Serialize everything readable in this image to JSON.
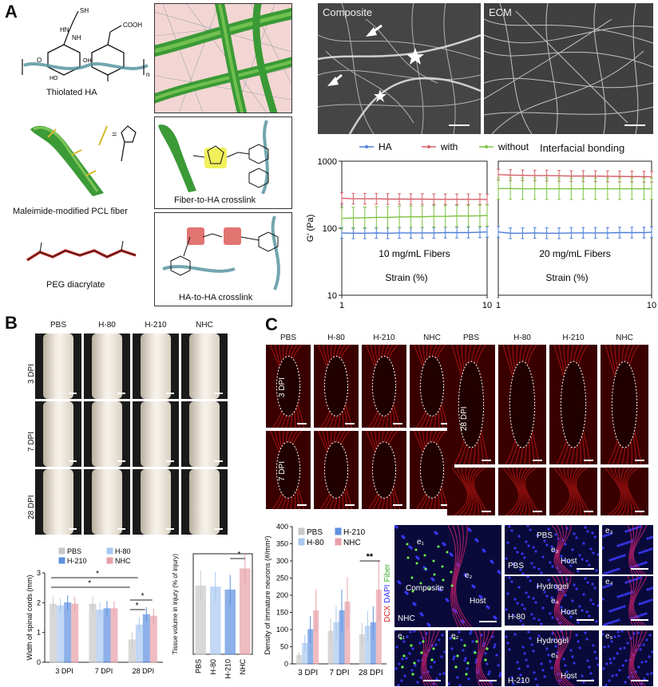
{
  "panelA": {
    "letter": "A",
    "labels": {
      "thiolated_ha": "Thiolated HA",
      "maleimide_fiber": "Maleimide-modified PCL fiber",
      "peg": "PEG diacrylate",
      "fiber_ha": "Fiber-to-HA crosslink",
      "ha_ha": "HA-to-HA crosslink",
      "sem_composite": "Composite",
      "sem_ecm": "ECM",
      "fibers_10": "10 mg/mL Fibers",
      "fibers_20": "20 mg/mL Fibers",
      "interfacial": "Interfacial bonding"
    },
    "chem": {
      "sh": "SH",
      "hn": "HN",
      "nh": "NH",
      "o": "O",
      "cooh": "COOH",
      "oh": "OH",
      "ho": "HO",
      "n": "n",
      "eq": "="
    }
  },
  "chart_data": [
    {
      "type": "line",
      "title": "",
      "xlabel": "Strain (%)",
      "ylabel": "G' (Pa)",
      "xscale": "log",
      "yscale": "log",
      "xlim": [
        1,
        10
      ],
      "ylim": [
        10,
        1000
      ],
      "xticks": [
        "1",
        "10"
      ],
      "yticks": [
        "10",
        "100",
        "1000"
      ],
      "annotation": "10 mg/mL Fibers",
      "legend": {
        "placement": "top",
        "entries": [
          "HA",
          "with",
          "without"
        ]
      },
      "series": [
        {
          "name": "HA",
          "color": "#4f7ed8",
          "x": [
            1,
            1.2,
            1.44,
            1.73,
            2.07,
            2.49,
            2.99,
            3.58,
            4.3,
            5.16,
            6.19,
            7.43,
            8.92,
            10
          ],
          "y": [
            85,
            84,
            84,
            85,
            84,
            85,
            85,
            85,
            85,
            86,
            86,
            86,
            87,
            88
          ]
        },
        {
          "name": "with",
          "color": "#d45f68",
          "x": [
            1,
            1.2,
            1.44,
            1.73,
            2.07,
            2.49,
            2.99,
            3.58,
            4.3,
            5.16,
            6.19,
            7.43,
            8.92,
            10
          ],
          "y": [
            280,
            275,
            275,
            275,
            272,
            272,
            272,
            272,
            270,
            270,
            270,
            270,
            270,
            268
          ]
        },
        {
          "name": "without",
          "color": "#7cc242",
          "x": [
            1,
            1.2,
            1.44,
            1.73,
            2.07,
            2.49,
            2.99,
            3.58,
            4.3,
            5.16,
            6.19,
            7.43,
            8.92,
            10
          ],
          "y": [
            140,
            142,
            143,
            145,
            145,
            147,
            148,
            148,
            150,
            150,
            152,
            152,
            153,
            155
          ]
        }
      ]
    },
    {
      "type": "line",
      "title": "",
      "xlabel": "Strain (%)",
      "ylabel": "",
      "xscale": "log",
      "yscale": "log",
      "xlim": [
        1,
        10
      ],
      "ylim": [
        10,
        1000
      ],
      "xticks": [
        "1",
        "10"
      ],
      "annotation": "20 mg/mL Fibers",
      "series": [
        {
          "name": "HA",
          "color": "#4f7ed8",
          "x": [
            1,
            1.2,
            1.44,
            1.73,
            2.07,
            2.49,
            2.99,
            3.58,
            4.3,
            5.16,
            6.19,
            7.43,
            8.92,
            10
          ],
          "y": [
            88,
            84,
            84,
            85,
            84,
            84,
            85,
            85,
            85,
            85,
            86,
            86,
            86,
            87
          ]
        },
        {
          "name": "with",
          "color": "#d45f68",
          "x": [
            1,
            1.2,
            1.44,
            1.73,
            2.07,
            2.49,
            2.99,
            3.58,
            4.3,
            5.16,
            6.19,
            7.43,
            8.92,
            10
          ],
          "y": [
            630,
            620,
            615,
            610,
            610,
            605,
            600,
            600,
            598,
            595,
            592,
            590,
            588,
            585
          ]
        },
        {
          "name": "without",
          "color": "#7cc242",
          "x": [
            1,
            1.2,
            1.44,
            1.73,
            2.07,
            2.49,
            2.99,
            3.58,
            4.3,
            5.16,
            6.19,
            7.43,
            8.92,
            10
          ],
          "y": [
            390,
            390,
            388,
            388,
            388,
            388,
            388,
            388,
            388,
            388,
            388,
            388,
            388,
            388
          ]
        }
      ]
    },
    {
      "type": "bar",
      "title": "",
      "ylabel": "Width of spinal cords (mm)",
      "categories": [
        "3 DPI",
        "7 DPI",
        "28 DPI"
      ],
      "ylim": [
        0,
        3
      ],
      "yticks": [
        "0",
        "1",
        "2",
        "3"
      ],
      "legend": {
        "placement": "top",
        "entries": [
          "PBS",
          "H-80",
          "H-210",
          "NHC"
        ]
      },
      "significance": [
        "*",
        "*",
        "*",
        "*"
      ],
      "series": [
        {
          "name": "PBS",
          "color": "#c8c8c8",
          "values": [
            1.95,
            1.95,
            0.75
          ]
        },
        {
          "name": "H-80",
          "color": "#a9c8f0",
          "values": [
            1.9,
            1.75,
            1.25
          ]
        },
        {
          "name": "H-210",
          "color": "#5f8fe0",
          "values": [
            2.0,
            1.8,
            1.6
          ]
        },
        {
          "name": "NHC",
          "color": "#e8a0a8",
          "values": [
            1.95,
            1.8,
            1.55
          ]
        }
      ]
    },
    {
      "type": "bar",
      "title": "",
      "ylabel": "Tissue volume in injury (% of injury)",
      "categories": [
        "PBS",
        "H-80",
        "H-210",
        "NHC"
      ],
      "ylim": [
        0,
        100
      ],
      "yticks": [
        "0",
        "25",
        "50",
        "75",
        "100"
      ],
      "significance": [
        "*"
      ],
      "colors": [
        "#c8c8c8",
        "#a9c8f0",
        "#5f8fe0",
        "#e8a0a8"
      ],
      "values": [
        68,
        67,
        64,
        85
      ]
    },
    {
      "type": "bar",
      "title": "",
      "ylabel": "Density of immature neurons (#/mm²)",
      "categories": [
        "3 DPI",
        "7 DPI",
        "28 DPI"
      ],
      "ylim": [
        0,
        400
      ],
      "yticks": [
        "0",
        "50",
        "100",
        "150",
        "200",
        "250",
        "300",
        "350",
        "400"
      ],
      "legend": {
        "placement": "top-left",
        "entries": [
          "PBS",
          "H-210",
          "H-80",
          "NHC"
        ]
      },
      "significance": [
        "**"
      ],
      "series": [
        {
          "name": "PBS",
          "color": "#c8c8c8",
          "values": [
            25,
            95,
            85
          ]
        },
        {
          "name": "H-80",
          "color": "#a9c8f0",
          "values": [
            60,
            120,
            110
          ]
        },
        {
          "name": "H-210",
          "color": "#5f8fe0",
          "values": [
            100,
            155,
            120
          ]
        },
        {
          "name": "NHC",
          "color": "#e8a0a8",
          "values": [
            155,
            180,
            215
          ]
        }
      ]
    }
  ],
  "panelB": {
    "letter": "B",
    "columns": [
      "PBS",
      "H-80",
      "H-210",
      "NHC"
    ],
    "rows": [
      "3 DPI",
      "7 DPI",
      "28 DPI"
    ]
  },
  "panelC": {
    "letter": "C",
    "columns_left": [
      "PBS",
      "H-80",
      "H-210",
      "NHC"
    ],
    "columns_right": [
      "PBS",
      "H-80",
      "H-210",
      "NHC"
    ],
    "rows_left": [
      "3 DPI",
      "7 DPI"
    ],
    "row_right": "28 DPI",
    "stain": {
      "dcx": "DCX",
      "dapi": "DAPI",
      "fiber": "Fiber"
    },
    "fluor_labels": {
      "e1": "e₁",
      "e2": "e₂",
      "e3": "e₃",
      "e4": "e₄",
      "e5": "e₅",
      "composite": "Composite",
      "host": "Host",
      "nhc": "NHC",
      "pbs": "PBS",
      "hydrogel": "Hydrogel",
      "h80": "H-80",
      "h210": "H-210"
    }
  }
}
